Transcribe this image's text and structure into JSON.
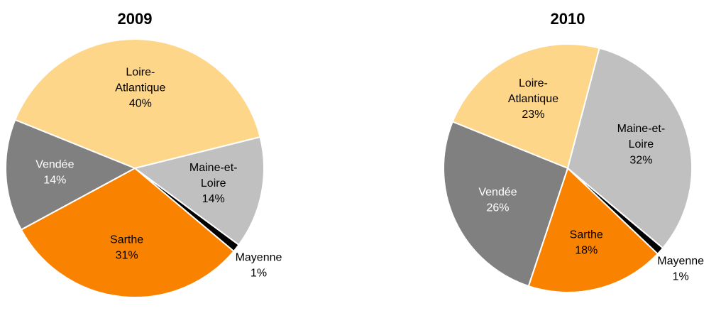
{
  "chart_data": [
    {
      "type": "pie",
      "title": "2009",
      "categories": [
        "Loire-Atlantique",
        "Maine-et-Loire",
        "Mayenne",
        "Sarthe",
        "Vendée"
      ],
      "values": [
        40,
        14,
        1,
        31,
        14
      ],
      "value_labels": [
        "40%",
        "14%",
        "1%",
        "31%",
        "14%"
      ],
      "colors": [
        "#fdd68a",
        "#c0c0c0",
        "#000000",
        "#f98300",
        "#808080"
      ]
    },
    {
      "type": "pie",
      "title": "2010",
      "categories": [
        "Loire-Atlantique",
        "Maine-et-Loire",
        "Mayenne",
        "Sarthe",
        "Vendée"
      ],
      "values": [
        23,
        32,
        1,
        18,
        26
      ],
      "value_labels": [
        "23%",
        "32%",
        "1%",
        "18%",
        "26%"
      ],
      "colors": [
        "#fdd68a",
        "#c0c0c0",
        "#000000",
        "#f98300",
        "#808080"
      ]
    }
  ]
}
